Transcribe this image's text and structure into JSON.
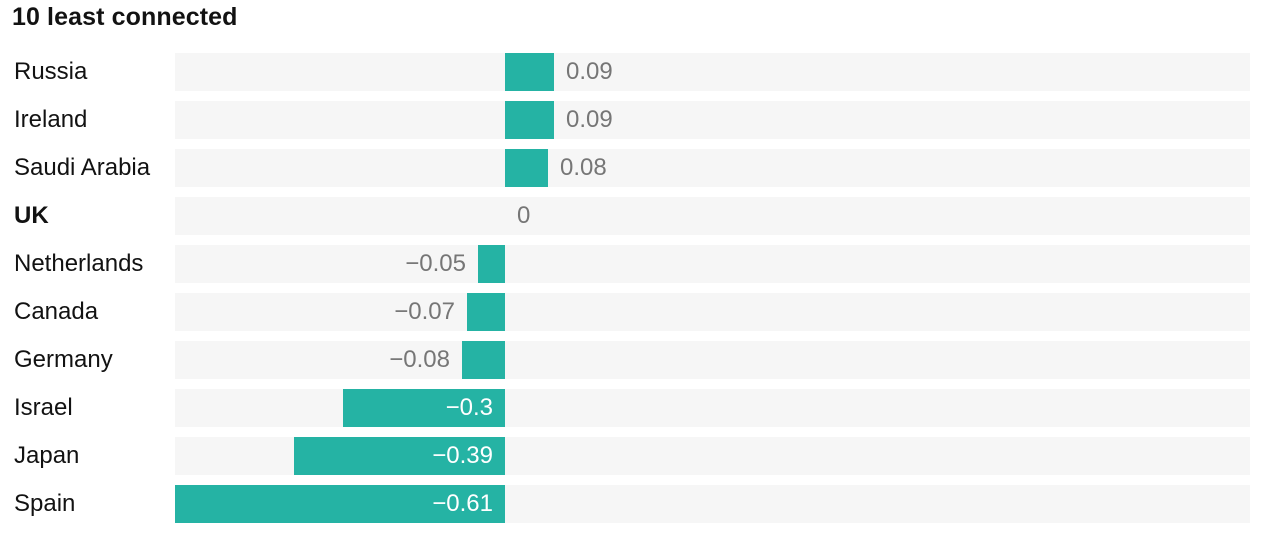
{
  "page": {
    "background": "#ffffff"
  },
  "chart_data": {
    "type": "bar",
    "orientation": "horizontal",
    "title": "10 least connected",
    "categories": [
      "Russia",
      "Ireland",
      "Saudi Arabia",
      "UK",
      "Netherlands",
      "Canada",
      "Germany",
      "Israel",
      "Japan",
      "Spain"
    ],
    "values": [
      0.09,
      0.09,
      0.08,
      0,
      -0.05,
      -0.07,
      -0.08,
      -0.3,
      -0.39,
      -0.61
    ],
    "value_labels": [
      "0.09",
      "0.09",
      "0.08",
      "0",
      "−0.05",
      "−0.07",
      "−0.08",
      "−0.3",
      "−0.39",
      "−0.61"
    ],
    "emphasized_category": "UK",
    "xlim": [
      -0.61,
      1.38
    ],
    "baseline": 0,
    "grid": false,
    "legend": false,
    "colors": {
      "bar": "#25b3a4",
      "track": "#f6f6f6",
      "title_text": "#121212",
      "category_text": "#121212",
      "value_text_outside": "#767676",
      "value_text_inside": "#ffffff"
    }
  }
}
